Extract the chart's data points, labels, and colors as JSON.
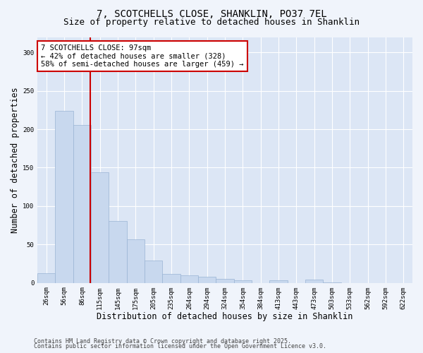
{
  "title_line1": "7, SCOTCHELLS CLOSE, SHANKLIN, PO37 7EL",
  "title_line2": "Size of property relative to detached houses in Shanklin",
  "xlabel": "Distribution of detached houses by size in Shanklin",
  "ylabel": "Number of detached properties",
  "categories": [
    "26sqm",
    "56sqm",
    "86sqm",
    "115sqm",
    "145sqm",
    "175sqm",
    "205sqm",
    "235sqm",
    "264sqm",
    "294sqm",
    "324sqm",
    "354sqm",
    "384sqm",
    "413sqm",
    "443sqm",
    "473sqm",
    "503sqm",
    "533sqm",
    "562sqm",
    "592sqm",
    "622sqm"
  ],
  "values": [
    13,
    224,
    206,
    144,
    81,
    57,
    29,
    12,
    10,
    8,
    5,
    3,
    0,
    3,
    0,
    4,
    1,
    0,
    0,
    0,
    0
  ],
  "bar_color": "#c8d8ee",
  "bar_edge_color": "#9ab4d4",
  "bar_width": 1.0,
  "ylim": [
    0,
    320
  ],
  "yticks": [
    0,
    50,
    100,
    150,
    200,
    250,
    300
  ],
  "red_line_x": 2.45,
  "annotation_text": "7 SCOTCHELLS CLOSE: 97sqm\n← 42% of detached houses are smaller (328)\n58% of semi-detached houses are larger (459) →",
  "annotation_box_facecolor": "#ffffff",
  "annotation_box_edgecolor": "#cc0000",
  "red_line_color": "#cc0000",
  "fig_facecolor": "#f0f4fb",
  "plot_facecolor": "#dce6f5",
  "grid_color": "#ffffff",
  "footer_line1": "Contains HM Land Registry data © Crown copyright and database right 2025.",
  "footer_line2": "Contains public sector information licensed under the Open Government Licence v3.0.",
  "title_fontsize": 10,
  "subtitle_fontsize": 9,
  "axis_label_fontsize": 8.5,
  "tick_fontsize": 6.5,
  "annotation_fontsize": 7.5,
  "footer_fontsize": 6
}
